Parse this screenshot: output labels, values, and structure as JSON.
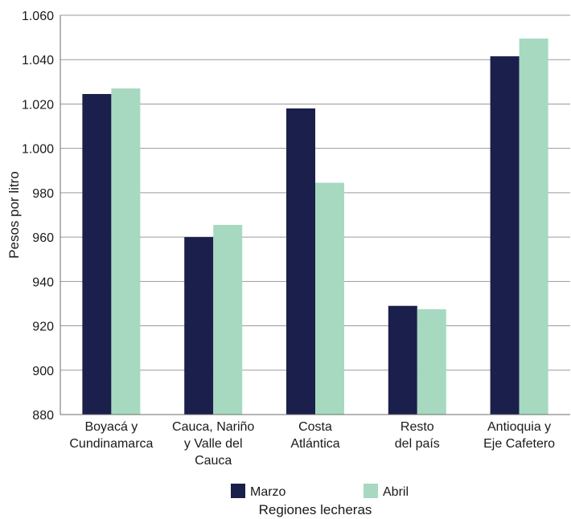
{
  "chart_data": {
    "type": "bar",
    "categories": [
      [
        "Boyacá y",
        "Cundinamarca"
      ],
      [
        "Cauca, Nariño",
        "y Valle del",
        "Cauca"
      ],
      [
        "Costa",
        "Atlántica"
      ],
      [
        "Resto",
        "del país"
      ],
      [
        "Antioquia y",
        "Eje Cafetero"
      ]
    ],
    "series": [
      {
        "name": "Marzo",
        "values": [
          1024.5,
          960,
          1018,
          929,
          1041.5
        ]
      },
      {
        "name": "Abril",
        "values": [
          1027,
          965.5,
          984.5,
          927.5,
          1049.5
        ]
      }
    ],
    "xlabel": "Regiones lecheras",
    "ylabel": "Pesos por litro",
    "ylim": [
      880,
      1060
    ],
    "yticks": [
      880,
      900,
      920,
      940,
      960,
      980,
      1000,
      1020,
      1040,
      1060
    ],
    "ytick_labels": [
      "880",
      "900",
      "920",
      "940",
      "960",
      "980",
      "1.000",
      "1.020",
      "1.040",
      "1.060"
    ],
    "grid": true,
    "legend_position": "bottom",
    "colors": {
      "Marzo": "#1a1f4b",
      "Abril": "#a6d9c0",
      "grid": "#9a9a9a",
      "axis": "#6e6e6e"
    }
  }
}
